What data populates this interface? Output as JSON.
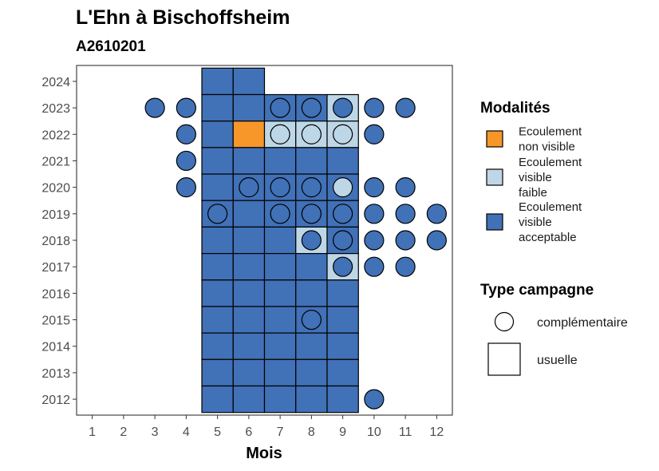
{
  "chart_data": {
    "type": "heatmap",
    "title": "L'Ehn à Bischoffsheim",
    "subtitle": "A2610201",
    "xlabel": "Mois",
    "ylabel": "",
    "x_ticks": [
      "1",
      "2",
      "3",
      "4",
      "5",
      "6",
      "7",
      "8",
      "9",
      "10",
      "11",
      "12"
    ],
    "y_ticks": [
      "2012",
      "2013",
      "2014",
      "2015",
      "2016",
      "2017",
      "2018",
      "2019",
      "2020",
      "2021",
      "2022",
      "2023",
      "2024"
    ],
    "xlim": [
      0.5,
      12.5
    ],
    "ylim": [
      2011.4,
      2024.6
    ],
    "grid": false,
    "legend_position": "right",
    "categories": [
      {
        "key": "nv",
        "label": [
          "Ecoulement",
          "non visible"
        ],
        "color": "#F7972A"
      },
      {
        "key": "vf",
        "label": [
          "Ecoulement",
          "visible",
          "faible"
        ],
        "color": "#BED7E6"
      },
      {
        "key": "va",
        "label": [
          "Ecoulement",
          "visible",
          "acceptable"
        ],
        "color": "#4171B7"
      }
    ],
    "legend_modalites_title": "Modalités",
    "legend_type_title": "Type campagne",
    "campaign_types": [
      {
        "key": "comp",
        "label": "complémentaire",
        "shape": "circle"
      },
      {
        "key": "usu",
        "label": "usuelle",
        "shape": "square"
      }
    ],
    "squares": [
      {
        "year": 2024,
        "month": 5,
        "cat": "va"
      },
      {
        "year": 2024,
        "month": 6,
        "cat": "va"
      },
      {
        "year": 2023,
        "month": 5,
        "cat": "va"
      },
      {
        "year": 2023,
        "month": 6,
        "cat": "va"
      },
      {
        "year": 2023,
        "month": 7,
        "cat": "va"
      },
      {
        "year": 2023,
        "month": 8,
        "cat": "va"
      },
      {
        "year": 2023,
        "month": 9,
        "cat": "vf"
      },
      {
        "year": 2022,
        "month": 5,
        "cat": "va"
      },
      {
        "year": 2022,
        "month": 6,
        "cat": "nv"
      },
      {
        "year": 2022,
        "month": 7,
        "cat": "vf"
      },
      {
        "year": 2022,
        "month": 8,
        "cat": "vf"
      },
      {
        "year": 2022,
        "month": 9,
        "cat": "vf"
      },
      {
        "year": 2021,
        "month": 5,
        "cat": "va"
      },
      {
        "year": 2021,
        "month": 6,
        "cat": "va"
      },
      {
        "year": 2021,
        "month": 7,
        "cat": "va"
      },
      {
        "year": 2021,
        "month": 8,
        "cat": "va"
      },
      {
        "year": 2021,
        "month": 9,
        "cat": "va"
      },
      {
        "year": 2020,
        "month": 5,
        "cat": "va"
      },
      {
        "year": 2020,
        "month": 6,
        "cat": "va"
      },
      {
        "year": 2020,
        "month": 7,
        "cat": "va"
      },
      {
        "year": 2020,
        "month": 8,
        "cat": "va"
      },
      {
        "year": 2020,
        "month": 9,
        "cat": "va"
      },
      {
        "year": 2019,
        "month": 5,
        "cat": "va"
      },
      {
        "year": 2019,
        "month": 6,
        "cat": "va"
      },
      {
        "year": 2019,
        "month": 7,
        "cat": "va"
      },
      {
        "year": 2019,
        "month": 8,
        "cat": "va"
      },
      {
        "year": 2019,
        "month": 9,
        "cat": "va"
      },
      {
        "year": 2018,
        "month": 5,
        "cat": "va"
      },
      {
        "year": 2018,
        "month": 6,
        "cat": "va"
      },
      {
        "year": 2018,
        "month": 7,
        "cat": "va"
      },
      {
        "year": 2018,
        "month": 8,
        "cat": "vf"
      },
      {
        "year": 2018,
        "month": 9,
        "cat": "va"
      },
      {
        "year": 2017,
        "month": 5,
        "cat": "va"
      },
      {
        "year": 2017,
        "month": 6,
        "cat": "va"
      },
      {
        "year": 2017,
        "month": 7,
        "cat": "va"
      },
      {
        "year": 2017,
        "month": 8,
        "cat": "va"
      },
      {
        "year": 2017,
        "month": 9,
        "cat": "vf"
      },
      {
        "year": 2016,
        "month": 5,
        "cat": "va"
      },
      {
        "year": 2016,
        "month": 6,
        "cat": "va"
      },
      {
        "year": 2016,
        "month": 7,
        "cat": "va"
      },
      {
        "year": 2016,
        "month": 8,
        "cat": "va"
      },
      {
        "year": 2016,
        "month": 9,
        "cat": "va"
      },
      {
        "year": 2015,
        "month": 5,
        "cat": "va"
      },
      {
        "year": 2015,
        "month": 6,
        "cat": "va"
      },
      {
        "year": 2015,
        "month": 7,
        "cat": "va"
      },
      {
        "year": 2015,
        "month": 8,
        "cat": "va"
      },
      {
        "year": 2015,
        "month": 9,
        "cat": "va"
      },
      {
        "year": 2014,
        "month": 5,
        "cat": "va"
      },
      {
        "year": 2014,
        "month": 6,
        "cat": "va"
      },
      {
        "year": 2014,
        "month": 7,
        "cat": "va"
      },
      {
        "year": 2014,
        "month": 8,
        "cat": "va"
      },
      {
        "year": 2014,
        "month": 9,
        "cat": "va"
      },
      {
        "year": 2013,
        "month": 5,
        "cat": "va"
      },
      {
        "year": 2013,
        "month": 6,
        "cat": "va"
      },
      {
        "year": 2013,
        "month": 7,
        "cat": "va"
      },
      {
        "year": 2013,
        "month": 8,
        "cat": "va"
      },
      {
        "year": 2013,
        "month": 9,
        "cat": "va"
      },
      {
        "year": 2012,
        "month": 5,
        "cat": "va"
      },
      {
        "year": 2012,
        "month": 6,
        "cat": "va"
      },
      {
        "year": 2012,
        "month": 7,
        "cat": "va"
      },
      {
        "year": 2012,
        "month": 8,
        "cat": "va"
      },
      {
        "year": 2012,
        "month": 9,
        "cat": "va"
      }
    ],
    "circles": [
      {
        "year": 2023,
        "month": 3,
        "cat": "va"
      },
      {
        "year": 2023,
        "month": 4,
        "cat": "va"
      },
      {
        "year": 2023,
        "month": 7,
        "cat": "va"
      },
      {
        "year": 2023,
        "month": 8,
        "cat": "va"
      },
      {
        "year": 2023,
        "month": 9,
        "cat": "va"
      },
      {
        "year": 2023,
        "month": 10,
        "cat": "va"
      },
      {
        "year": 2023,
        "month": 11,
        "cat": "va"
      },
      {
        "year": 2022,
        "month": 4,
        "cat": "va"
      },
      {
        "year": 2022,
        "month": 7,
        "cat": "vf"
      },
      {
        "year": 2022,
        "month": 8,
        "cat": "vf"
      },
      {
        "year": 2022,
        "month": 9,
        "cat": "vf"
      },
      {
        "year": 2022,
        "month": 10,
        "cat": "va"
      },
      {
        "year": 2021,
        "month": 4,
        "cat": "va"
      },
      {
        "year": 2020,
        "month": 4,
        "cat": "va"
      },
      {
        "year": 2020,
        "month": 6,
        "cat": "va"
      },
      {
        "year": 2020,
        "month": 7,
        "cat": "va"
      },
      {
        "year": 2020,
        "month": 8,
        "cat": "va"
      },
      {
        "year": 2020,
        "month": 9,
        "cat": "vf"
      },
      {
        "year": 2020,
        "month": 10,
        "cat": "va"
      },
      {
        "year": 2020,
        "month": 11,
        "cat": "va"
      },
      {
        "year": 2019,
        "month": 5,
        "cat": "va"
      },
      {
        "year": 2019,
        "month": 7,
        "cat": "va"
      },
      {
        "year": 2019,
        "month": 8,
        "cat": "va"
      },
      {
        "year": 2019,
        "month": 9,
        "cat": "va"
      },
      {
        "year": 2019,
        "month": 10,
        "cat": "va"
      },
      {
        "year": 2019,
        "month": 11,
        "cat": "va"
      },
      {
        "year": 2019,
        "month": 12,
        "cat": "va"
      },
      {
        "year": 2018,
        "month": 8,
        "cat": "va"
      },
      {
        "year": 2018,
        "month": 9,
        "cat": "va"
      },
      {
        "year": 2018,
        "month": 10,
        "cat": "va"
      },
      {
        "year": 2018,
        "month": 11,
        "cat": "va"
      },
      {
        "year": 2018,
        "month": 12,
        "cat": "va"
      },
      {
        "year": 2017,
        "month": 9,
        "cat": "va"
      },
      {
        "year": 2017,
        "month": 10,
        "cat": "va"
      },
      {
        "year": 2017,
        "month": 11,
        "cat": "va"
      },
      {
        "year": 2015,
        "month": 8,
        "cat": "va"
      },
      {
        "year": 2012,
        "month": 10,
        "cat": "va"
      }
    ]
  }
}
